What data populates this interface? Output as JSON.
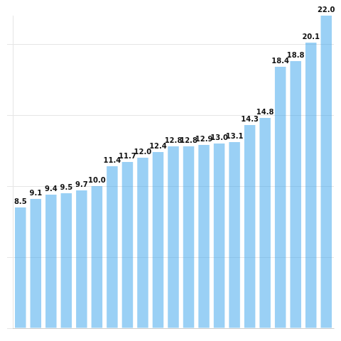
{
  "chart_data": {
    "type": "bar",
    "categories": [
      null,
      null,
      null,
      null,
      null,
      null,
      null,
      null,
      null,
      null,
      null,
      null,
      null,
      null,
      null,
      null,
      null,
      null,
      null,
      null,
      null
    ],
    "values": [
      8.5,
      9.1,
      9.4,
      9.5,
      9.7,
      10.0,
      11.4,
      11.7,
      12.0,
      12.4,
      12.8,
      12.8,
      12.9,
      13.0,
      13.1,
      14.3,
      14.8,
      18.4,
      18.8,
      20.1,
      22.0
    ],
    "value_labels": [
      "8.5",
      "9.1",
      "9.4",
      "9.5",
      "9.7",
      "10.0",
      "11.4",
      "11.7",
      "12.0",
      "12.4",
      "12.8",
      "12.8",
      "12.9",
      "13.0",
      "13.1",
      "14.3",
      "14.8",
      "18.4",
      "18.8",
      "20.1",
      "22.0"
    ],
    "data_labels": true,
    "ylim": [
      0,
      22
    ],
    "yticks": [
      0,
      5,
      10,
      15,
      20
    ],
    "grid": true,
    "tick_labels": false
  }
}
